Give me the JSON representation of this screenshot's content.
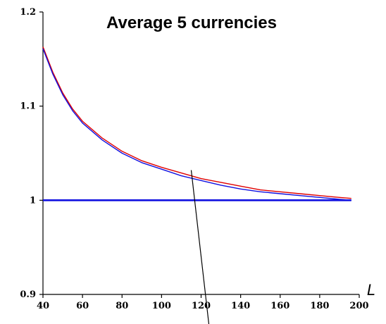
{
  "chart_data": {
    "type": "line",
    "title": "Average 5 currencies",
    "xlabel": "L",
    "ylabel": "",
    "xlim": [
      40,
      200
    ],
    "ylim": [
      0.9,
      1.2
    ],
    "x_ticks": [
      "40",
      "60",
      "80",
      "100",
      "120",
      "140",
      "160",
      "180",
      "200"
    ],
    "y_ticks": [
      "0.9",
      "1",
      "1.1",
      "1.2"
    ],
    "grid": false,
    "legend": "none",
    "series": [
      {
        "color": "#e00000",
        "x": [
          40,
          45,
          50,
          55,
          60,
          70,
          80,
          90,
          100,
          110,
          120,
          130,
          140,
          150,
          160,
          170,
          180,
          190,
          196
        ],
        "y": [
          1.163,
          1.136,
          1.114,
          1.097,
          1.084,
          1.066,
          1.052,
          1.042,
          1.035,
          1.029,
          1.023,
          1.019,
          1.015,
          1.011,
          1.009,
          1.007,
          1.005,
          1.003,
          1.002
        ]
      },
      {
        "color": "#1010e0",
        "x": [
          40,
          45,
          50,
          55,
          60,
          70,
          80,
          90,
          100,
          110,
          120,
          130,
          140,
          150,
          160,
          170,
          180,
          190,
          196
        ],
        "y": [
          1.161,
          1.134,
          1.112,
          1.095,
          1.082,
          1.064,
          1.05,
          1.04,
          1.033,
          1.026,
          1.021,
          1.016,
          1.012,
          1.009,
          1.007,
          1.005,
          1.003,
          1.001,
          1.0
        ]
      },
      {
        "color": "#1010e0",
        "x": [
          40,
          196
        ],
        "y": [
          1.0,
          1.0
        ]
      }
    ],
    "annotation_line": {
      "color": "#000000",
      "x": [
        115,
        124
      ],
      "y": [
        1.032,
        0.867
      ]
    }
  }
}
